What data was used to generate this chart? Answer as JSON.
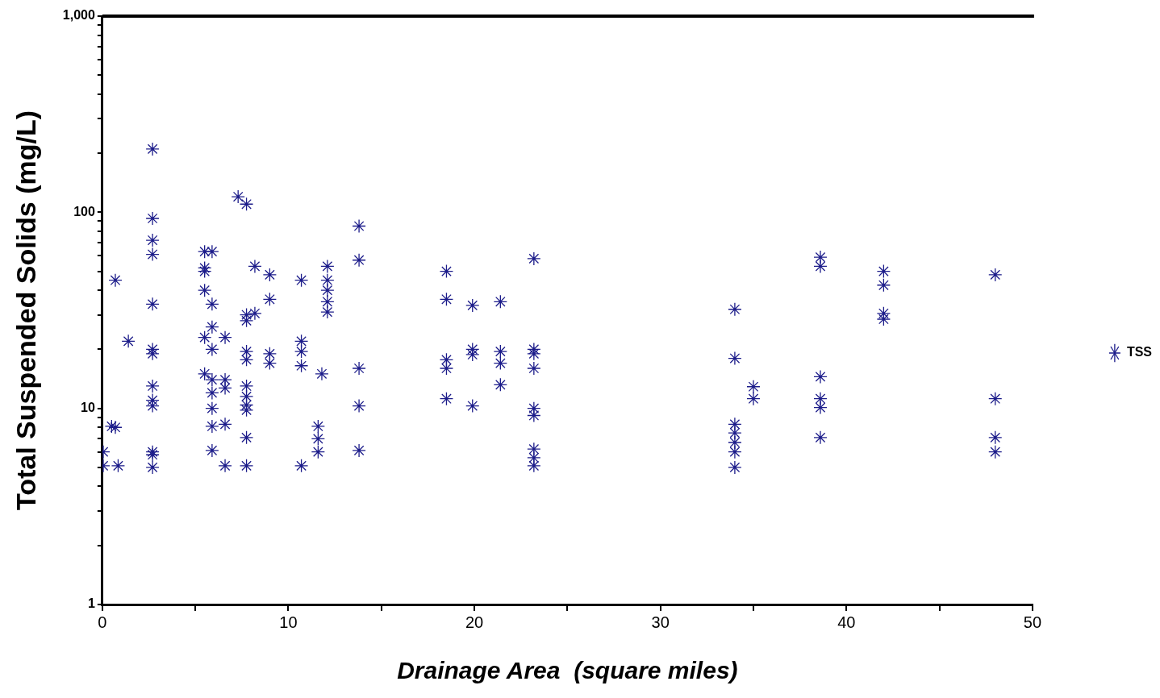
{
  "chart_data": {
    "type": "scatter",
    "xlabel": "Drainage Area  (square miles)",
    "ylabel": "Total Suspended Solids (mg/L)",
    "log": "y",
    "grid": false,
    "legend": "right",
    "marker": "cross",
    "xlim": [
      0,
      50
    ],
    "xticks": [
      0,
      {
        "value": 5,
        "label": null
      },
      10,
      {
        "value": 15,
        "label": null
      },
      20,
      {
        "value": 25,
        "label": null
      },
      30,
      {
        "value": 35,
        "label": null
      },
      40,
      {
        "value": 45,
        "label": null
      },
      50
    ],
    "ylim": [
      1,
      1000
    ],
    "yticks": [
      1,
      {
        "value": 2,
        "label": null
      },
      {
        "value": 3,
        "label": null
      },
      {
        "value": 4,
        "label": null
      },
      {
        "value": 5,
        "label": null
      },
      {
        "value": 6,
        "label": null
      },
      {
        "value": 7,
        "label": null
      },
      {
        "value": 8,
        "label": null
      },
      {
        "value": 9,
        "label": null
      },
      10,
      {
        "value": 20,
        "label": null
      },
      {
        "value": 30,
        "label": null
      },
      {
        "value": 40,
        "label": null
      },
      {
        "value": 50,
        "label": null
      },
      {
        "value": 60,
        "label": null
      },
      {
        "value": 70,
        "label": null
      },
      {
        "value": 80,
        "label": null
      },
      {
        "value": 90,
        "label": null
      },
      100,
      {
        "value": 200,
        "label": null
      },
      {
        "value": 300,
        "label": null
      },
      {
        "value": 400,
        "label": null
      },
      {
        "value": 500,
        "label": null
      },
      {
        "value": 600,
        "label": null
      },
      {
        "value": 700,
        "label": null
      },
      {
        "value": 800,
        "label": null
      },
      {
        "value": 900,
        "label": null
      },
      {
        "value": 1000,
        "label": "1,000"
      }
    ],
    "series": [
      {
        "name": "TSS",
        "color": "#1c1c8a",
        "x": [
          0.05,
          0.05,
          0.5,
          0.7,
          0.7,
          0.85,
          1.4,
          2.7,
          2.7,
          2.7,
          2.7,
          2.7,
          2.7,
          2.7,
          2.7,
          2.7,
          2.7,
          2.7,
          2.7,
          2.7,
          5.5,
          5.5,
          5.5,
          5.5,
          5.5,
          5.5,
          5.9,
          5.9,
          5.9,
          5.9,
          5.9,
          5.9,
          5.9,
          5.9,
          5.9,
          6.6,
          6.6,
          6.6,
          6.6,
          6.6,
          7.3,
          7.75,
          7.75,
          7.75,
          7.75,
          7.75,
          7.75,
          7.75,
          7.75,
          7.75,
          7.75,
          7.75,
          8.2,
          8.2,
          9.0,
          9.0,
          9.0,
          9.0,
          10.7,
          10.7,
          10.7,
          10.7,
          10.7,
          11.6,
          11.6,
          11.6,
          11.8,
          12.1,
          12.1,
          12.1,
          12.1,
          12.1,
          13.8,
          13.8,
          13.8,
          13.8,
          13.8,
          18.5,
          18.5,
          18.5,
          18.5,
          18.5,
          19.9,
          19.9,
          19.9,
          19.9,
          21.4,
          21.4,
          21.4,
          21.4,
          23.2,
          23.2,
          23.2,
          23.2,
          23.2,
          23.2,
          23.2,
          23.2,
          23.2,
          34.0,
          34.0,
          34.0,
          34.0,
          34.0,
          34.0,
          34.0,
          35.0,
          35.0,
          38.6,
          38.6,
          38.6,
          38.6,
          38.6,
          38.6,
          42.0,
          42.0,
          42.0,
          42.0,
          48.0,
          48.0,
          48.0,
          48.0
        ],
        "values": [
          6,
          5.1,
          8.1,
          45,
          8,
          5.1,
          22,
          210,
          93,
          61,
          34,
          20,
          19,
          13,
          11,
          10.3,
          6,
          5.8,
          5,
          72,
          63,
          52,
          50,
          23,
          15,
          40,
          26,
          20,
          12,
          10,
          8.1,
          6.1,
          63,
          14,
          34,
          23,
          14,
          12.7,
          5.1,
          8.3,
          120,
          110,
          30,
          28,
          19.5,
          17.7,
          13,
          11.5,
          10.4,
          9.8,
          7.1,
          5.1,
          53,
          30.5,
          48,
          36,
          19,
          17,
          45,
          22,
          19.5,
          16.5,
          5.1,
          8.1,
          7,
          6,
          15,
          53,
          45,
          40,
          35,
          31,
          85,
          57,
          16,
          10.3,
          6.1,
          50,
          36,
          17.7,
          16,
          11.2,
          33.5,
          20,
          18.8,
          10.3,
          35,
          19.5,
          17,
          13.2,
          58,
          20,
          19,
          16,
          10,
          9.2,
          6.2,
          5.6,
          5.1,
          32,
          18,
          8.3,
          7.5,
          6.7,
          6,
          5,
          12.9,
          11.2,
          59,
          53,
          14.5,
          11.2,
          10.1,
          7.1,
          50,
          42.5,
          30.5,
          28.5,
          48,
          11.2,
          7.1,
          6
        ]
      }
    ]
  }
}
